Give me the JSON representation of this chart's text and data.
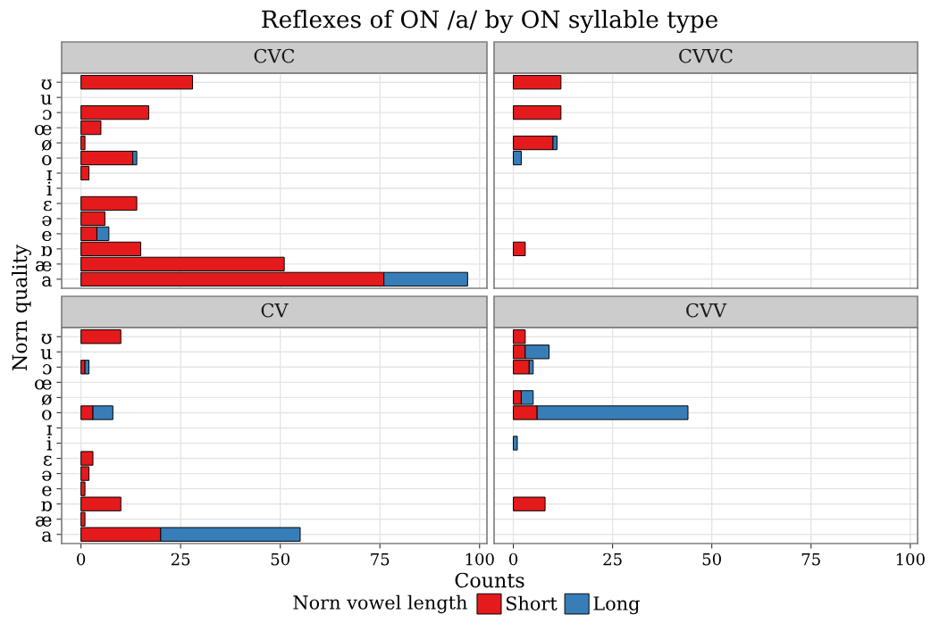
{
  "chart_data": [
    {
      "type": "bar",
      "orientation": "horizontal",
      "stacked": true,
      "title": "CVC",
      "annotations": [
        "Reflexes of ON /a/ by ON syllable type"
      ],
      "ylabel": "Norn quality",
      "legend_title": "Norn vowel length",
      "legend": "bottom",
      "grid": true,
      "tick_labels": "y",
      "categories": [
        "ʊ",
        "u",
        "ɔ",
        "œ",
        "ø",
        "o",
        "ɪ",
        "i",
        "ɛ",
        "ə",
        "e",
        "ɒ",
        "æ",
        "a"
      ],
      "xlim": [
        -4.85,
        101.85
      ],
      "xticks": [
        0,
        25,
        50,
        75,
        100
      ],
      "series": [
        {
          "name": "Short",
          "color": "#e41a1c",
          "values": [
            28,
            null,
            17,
            5,
            1,
            13,
            2,
            null,
            14,
            6,
            4,
            15,
            51,
            76
          ]
        },
        {
          "name": "Long",
          "color": "#377eb8",
          "values": [
            null,
            null,
            null,
            null,
            null,
            1,
            null,
            null,
            null,
            null,
            3,
            null,
            null,
            21
          ]
        }
      ]
    },
    {
      "type": "bar",
      "orientation": "horizontal",
      "stacked": true,
      "title": "CVVC",
      "grid": true,
      "tick_labels": false,
      "categories": [
        "ʊ",
        "u",
        "ɔ",
        "œ",
        "ø",
        "o",
        "ɪ",
        "i",
        "ɛ",
        "ə",
        "e",
        "ɒ",
        "æ",
        "a"
      ],
      "xlim": [
        -4.85,
        101.85
      ],
      "xticks": [
        0,
        25,
        50,
        75,
        100
      ],
      "series": [
        {
          "name": "Short",
          "color": "#e41a1c",
          "values": [
            12,
            null,
            12,
            null,
            10,
            null,
            null,
            null,
            null,
            null,
            null,
            3,
            null,
            null
          ]
        },
        {
          "name": "Long",
          "color": "#377eb8",
          "values": [
            null,
            null,
            null,
            null,
            1,
            2,
            null,
            null,
            null,
            null,
            null,
            null,
            null,
            null
          ]
        }
      ]
    },
    {
      "type": "bar",
      "orientation": "horizontal",
      "stacked": true,
      "title": "CV",
      "xlabel": "Counts",
      "grid": true,
      "categories": [
        "ʊ",
        "u",
        "ɔ",
        "œ",
        "ø",
        "o",
        "ɪ",
        "i",
        "ɛ",
        "ə",
        "e",
        "ɒ",
        "æ",
        "a"
      ],
      "xlim": [
        -4.85,
        101.85
      ],
      "xticks": [
        0,
        25,
        50,
        75,
        100
      ],
      "series": [
        {
          "name": "Short",
          "color": "#e41a1c",
          "values": [
            10,
            null,
            1,
            null,
            null,
            3,
            null,
            null,
            3,
            2,
            1,
            10,
            1,
            20
          ]
        },
        {
          "name": "Long",
          "color": "#377eb8",
          "values": [
            null,
            null,
            1,
            null,
            null,
            5,
            null,
            null,
            null,
            null,
            null,
            null,
            null,
            35
          ]
        }
      ]
    },
    {
      "type": "bar",
      "orientation": "horizontal",
      "stacked": true,
      "title": "CVV",
      "grid": true,
      "tick_labels": "x",
      "categories": [
        "ʊ",
        "u",
        "ɔ",
        "œ",
        "ø",
        "o",
        "ɪ",
        "i",
        "ɛ",
        "ə",
        "e",
        "ɒ",
        "æ",
        "a"
      ],
      "xlim": [
        -4.85,
        101.85
      ],
      "xticks": [
        0,
        25,
        50,
        75,
        100
      ],
      "series": [
        {
          "name": "Short",
          "color": "#e41a1c",
          "values": [
            3,
            3,
            4,
            null,
            2,
            6,
            null,
            null,
            null,
            null,
            null,
            8,
            null,
            null
          ]
        },
        {
          "name": "Long",
          "color": "#377eb8",
          "values": [
            null,
            6,
            1,
            null,
            3,
            38,
            null,
            1,
            null,
            null,
            null,
            null,
            null,
            null
          ]
        }
      ]
    }
  ]
}
